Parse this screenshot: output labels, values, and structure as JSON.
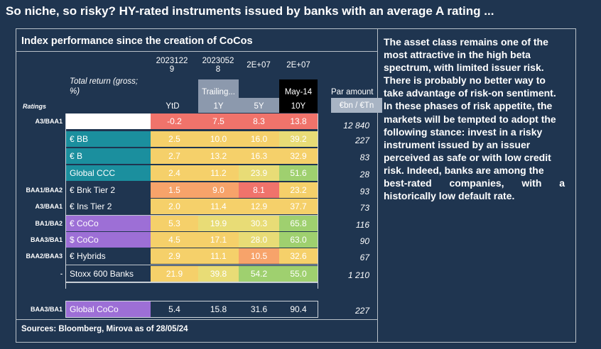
{
  "page_title": "So niche, so risky? HY-rated instruments issued by banks with an average A rating ...",
  "panel_title": "Index performance since the creation of CoCos",
  "source": "Sources: Bloomberg, Mirova as of 28/05/24",
  "narrative": [
    "The asset class remains one of the",
    "most attractive in the high beta",
    "spectrum, with limited issuer risk.",
    "There is probably no better way to",
    "take advantage of risk-on sentiment.",
    "In these phases of risk appetite, the",
    "markets will be tempted to adopt the",
    "following stance: invest in a risky",
    "instrument issued by an issuer",
    "perceived as safe or with low credit",
    "risk. Indeed, banks are among the",
    "best-rated companies, with a",
    "historically low default rate."
  ],
  "chart_data": {
    "type": "table",
    "header_dates": [
      "20231229",
      "20230528",
      "2E+07",
      "2E+07"
    ],
    "header_dates_display": [
      [
        "2023122",
        "9"
      ],
      [
        "2023052",
        "8"
      ],
      [
        "2E+07"
      ],
      [
        "2E+07"
      ]
    ],
    "total_return_label": "Total return (gross;",
    "total_return_label2": "%)",
    "trailing_label": "Trailing...",
    "since_label": "May-14",
    "par_amount_label": "Par amount",
    "par_unit_label": "€bn / €Tn",
    "ratings_header": "Ratings",
    "columns": [
      "YtD",
      "1Y",
      "5Y",
      "10Y"
    ],
    "rows": [
      {
        "rating": "A3/BAA1",
        "name": "",
        "values": [
          "-0.2",
          "7.5",
          "8.3",
          "13.8"
        ],
        "par": "12 840"
      },
      {
        "rating": "",
        "name": "€ BB",
        "values": [
          "2.5",
          "10.0",
          "16.0",
          "39.2"
        ],
        "par": "227"
      },
      {
        "rating": "",
        "name": "€ B",
        "values": [
          "2.7",
          "13.2",
          "16.3",
          "32.9"
        ],
        "par": "83"
      },
      {
        "rating": "",
        "name": "Global CCC",
        "values": [
          "2.4",
          "11.2",
          "23.9",
          "51.6"
        ],
        "par": "28"
      },
      {
        "rating": "BAA1/BAA2",
        "name": "€ Bnk Tier 2",
        "values": [
          "1.5",
          "9.0",
          "8.1",
          "23.2"
        ],
        "par": "93"
      },
      {
        "rating": "A3/BAA1",
        "name": "€ Ins Tier 2",
        "values": [
          "2.0",
          "11.4",
          "12.9",
          "37.7"
        ],
        "par": "73"
      },
      {
        "rating": "BA1/BA2",
        "name": "€ CoCo",
        "values": [
          "5.3",
          "19.9",
          "30.3",
          "65.8"
        ],
        "par": "116"
      },
      {
        "rating": "BAA3/BA1",
        "name": "$ CoCo",
        "values": [
          "4.5",
          "17.1",
          "28.0",
          "63.0"
        ],
        "par": "90"
      },
      {
        "rating": "BAA2/BAA3",
        "name": "€ Hybrids",
        "values": [
          "2.9",
          "11.1",
          "10.5",
          "32.6"
        ],
        "par": "67"
      },
      {
        "rating": "-",
        "name": "Stoxx 600 Banks",
        "values": [
          "21.9",
          "39.8",
          "54.2",
          "55.0"
        ],
        "par": "1 210"
      },
      {
        "rating": "BAA3/BA1",
        "name": "Global CoCo",
        "values": [
          "5.4",
          "15.8",
          "31.6",
          "90.4"
        ],
        "par": "227"
      }
    ]
  },
  "colors": {
    "background": "#1f3550",
    "teal": "#1b8f9e",
    "purple": "#9d6fd6",
    "red": "#f0736b",
    "orange": "#f7a36a",
    "yellow": "#f5d06a",
    "light_yellow": "#e8dc76",
    "green": "#9fd06f",
    "trailing_header": "#8c99ad",
    "par_header": "#a8b4c4"
  }
}
